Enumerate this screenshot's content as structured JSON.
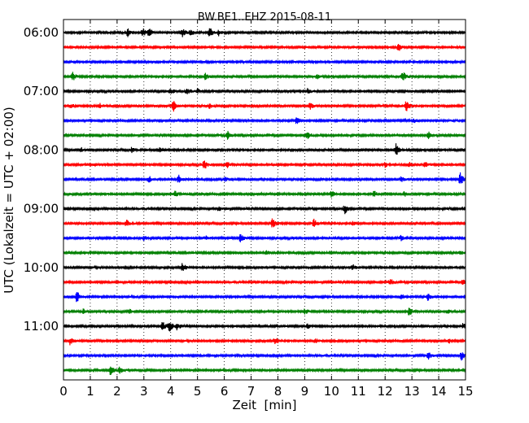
{
  "chart_data": {
    "type": "line",
    "title": "BW.BE1..EHZ 2015-08-11",
    "xlabel": "Zeit  [min]",
    "ylabel": "UTC (Lokalzeit = UTC + 02:00)",
    "xlim": [
      0,
      15
    ],
    "x_ticks": [
      "0",
      "1",
      "2",
      "3",
      "4",
      "5",
      "6",
      "7",
      "8",
      "9",
      "10",
      "11",
      "12",
      "13",
      "14",
      "15"
    ],
    "y_tick_labels": [
      "06:00",
      "07:00",
      "08:00",
      "09:00",
      "10:00",
      "11:00"
    ],
    "row_minutes": 15,
    "start_time": "06:00",
    "grid": "vertical dotted",
    "row_colors": [
      "#000000",
      "#ff0000",
      "#0000ff",
      "#008000"
    ],
    "rows": [
      {
        "time": "06:00",
        "events": [
          {
            "x": 2.4,
            "amp": 5
          },
          {
            "x": 2.95,
            "amp": 6
          },
          {
            "x": 3.2,
            "amp": 5
          },
          {
            "x": 4.45,
            "amp": 5
          },
          {
            "x": 4.75,
            "amp": 4
          },
          {
            "x": 5.45,
            "amp": 7
          },
          {
            "x": 5.8,
            "amp": 4
          }
        ]
      },
      {
        "time": "06:15",
        "events": [
          {
            "x": 12.5,
            "amp": 5
          }
        ]
      },
      {
        "time": "06:30",
        "events": []
      },
      {
        "time": "06:45",
        "events": [
          {
            "x": 0.35,
            "amp": 6
          },
          {
            "x": 5.3,
            "amp": 4
          },
          {
            "x": 9.45,
            "amp": 3
          },
          {
            "x": 12.65,
            "amp": 7
          }
        ]
      },
      {
        "time": "07:00",
        "events": [
          {
            "x": 4.0,
            "amp": 4
          },
          {
            "x": 4.6,
            "amp": 4
          },
          {
            "x": 5.0,
            "amp": 3
          },
          {
            "x": 9.1,
            "amp": 3
          }
        ]
      },
      {
        "time": "07:15",
        "events": [
          {
            "x": 0.3,
            "amp": 3
          },
          {
            "x": 1.35,
            "amp": 3
          },
          {
            "x": 4.1,
            "amp": 7
          },
          {
            "x": 5.45,
            "amp": 3
          },
          {
            "x": 9.2,
            "amp": 4
          },
          {
            "x": 12.8,
            "amp": 8
          }
        ]
      },
      {
        "time": "07:30",
        "events": [
          {
            "x": 8.7,
            "amp": 6
          },
          {
            "x": 13.05,
            "amp": 3
          }
        ]
      },
      {
        "time": "07:45",
        "events": [
          {
            "x": 6.1,
            "amp": 6
          },
          {
            "x": 9.1,
            "amp": 5
          },
          {
            "x": 13.6,
            "amp": 5
          }
        ]
      },
      {
        "time": "08:00",
        "events": [
          {
            "x": 0.65,
            "amp": 3
          },
          {
            "x": 2.55,
            "amp": 3
          },
          {
            "x": 3.6,
            "amp": 4
          },
          {
            "x": 12.4,
            "amp": 8
          }
        ]
      },
      {
        "time": "08:15",
        "events": [
          {
            "x": 5.25,
            "amp": 6
          },
          {
            "x": 6.1,
            "amp": 4
          },
          {
            "x": 12.0,
            "amp": 3
          },
          {
            "x": 12.9,
            "amp": 3
          },
          {
            "x": 13.5,
            "amp": 4
          }
        ]
      },
      {
        "time": "08:30",
        "events": [
          {
            "x": 3.2,
            "amp": 4
          },
          {
            "x": 4.3,
            "amp": 5
          },
          {
            "x": 6.0,
            "amp": 3
          },
          {
            "x": 12.6,
            "amp": 3
          },
          {
            "x": 14.8,
            "amp": 9
          }
        ]
      },
      {
        "time": "08:45",
        "events": [
          {
            "x": 4.15,
            "amp": 4
          },
          {
            "x": 10.0,
            "amp": 4
          },
          {
            "x": 11.6,
            "amp": 4
          },
          {
            "x": 12.7,
            "amp": 4
          }
        ]
      },
      {
        "time": "09:00",
        "events": [
          {
            "x": 10.5,
            "amp": 6
          },
          {
            "x": 5.8,
            "amp": 3
          }
        ]
      },
      {
        "time": "09:15",
        "events": [
          {
            "x": 2.35,
            "amp": 4
          },
          {
            "x": 7.8,
            "amp": 6
          },
          {
            "x": 9.35,
            "amp": 6
          },
          {
            "x": 10.8,
            "amp": 3
          }
        ]
      },
      {
        "time": "09:30",
        "events": [
          {
            "x": 3.0,
            "amp": 3
          },
          {
            "x": 5.3,
            "amp": 3
          },
          {
            "x": 6.6,
            "amp": 5
          },
          {
            "x": 12.6,
            "amp": 3
          }
        ]
      },
      {
        "time": "09:45",
        "events": [
          {
            "x": 7.55,
            "amp": 3
          },
          {
            "x": 14.8,
            "amp": 3
          }
        ]
      },
      {
        "time": "10:00",
        "events": [
          {
            "x": 4.45,
            "amp": 6
          },
          {
            "x": 10.8,
            "amp": 3
          }
        ]
      },
      {
        "time": "10:15",
        "events": [
          {
            "x": 12.2,
            "amp": 5
          },
          {
            "x": 14.9,
            "amp": 4
          }
        ]
      },
      {
        "time": "10:30",
        "events": [
          {
            "x": 0.5,
            "amp": 7
          },
          {
            "x": 12.6,
            "amp": 3
          },
          {
            "x": 13.6,
            "amp": 5
          }
        ]
      },
      {
        "time": "10:45",
        "events": [
          {
            "x": 0.75,
            "amp": 3
          },
          {
            "x": 2.45,
            "amp": 3
          },
          {
            "x": 9.0,
            "amp": 4
          },
          {
            "x": 12.9,
            "amp": 6
          },
          {
            "x": 14.3,
            "amp": 3
          }
        ]
      },
      {
        "time": "11:00",
        "events": [
          {
            "x": 3.7,
            "amp": 6
          },
          {
            "x": 3.95,
            "amp": 9
          },
          {
            "x": 4.25,
            "amp": 5
          },
          {
            "x": 9.1,
            "amp": 3
          },
          {
            "x": 14.9,
            "amp": 4
          }
        ]
      },
      {
        "time": "11:15",
        "events": [
          {
            "x": 0.25,
            "amp": 5
          },
          {
            "x": 7.9,
            "amp": 5
          },
          {
            "x": 9.4,
            "amp": 3
          },
          {
            "x": 14.4,
            "amp": 3
          }
        ]
      },
      {
        "time": "11:30",
        "events": [
          {
            "x": 13.6,
            "amp": 5
          },
          {
            "x": 14.85,
            "amp": 6
          }
        ]
      },
      {
        "time": "11:45",
        "events": [
          {
            "x": 1.75,
            "amp": 7
          },
          {
            "x": 2.1,
            "amp": 4
          }
        ]
      }
    ]
  }
}
